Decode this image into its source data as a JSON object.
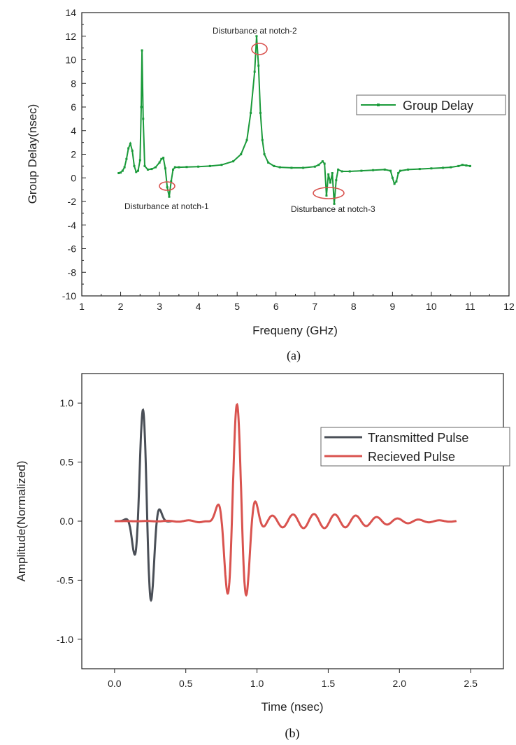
{
  "chart_data": [
    {
      "type": "line",
      "caption": "(a)",
      "xlabel": "Frequeny (GHz)",
      "ylabel": "Group Delay(nsec)",
      "xlim": [
        1,
        12
      ],
      "ylim": [
        -10,
        14
      ],
      "xticks": [
        1,
        2,
        3,
        4,
        5,
        6,
        7,
        8,
        9,
        10,
        11,
        12
      ],
      "yticks": [
        -10,
        -8,
        -6,
        -4,
        -2,
        0,
        2,
        4,
        6,
        8,
        10,
        12,
        14
      ],
      "grid": false,
      "legend_position": "right",
      "series": [
        {
          "name": "Group Delay",
          "color": "#1a9a3a",
          "marker": "square",
          "x": [
            1.95,
            2.0,
            2.05,
            2.1,
            2.15,
            2.2,
            2.25,
            2.3,
            2.35,
            2.4,
            2.45,
            2.5,
            2.53,
            2.55,
            2.58,
            2.62,
            2.7,
            2.8,
            2.9,
            3.0,
            3.05,
            3.1,
            3.15,
            3.2,
            3.25,
            3.3,
            3.35,
            3.4,
            3.5,
            3.7,
            4.0,
            4.3,
            4.6,
            4.9,
            5.1,
            5.25,
            5.35,
            5.45,
            5.5,
            5.55,
            5.6,
            5.65,
            5.7,
            5.8,
            5.95,
            6.1,
            6.4,
            6.7,
            7.0,
            7.1,
            7.2,
            7.25,
            7.3,
            7.35,
            7.4,
            7.45,
            7.5,
            7.55,
            7.6,
            7.7,
            7.9,
            8.2,
            8.5,
            8.8,
            8.95,
            9.0,
            9.05,
            9.1,
            9.15,
            9.2,
            9.4,
            9.7,
            10.0,
            10.3,
            10.5,
            10.7,
            10.8,
            10.9,
            11.0
          ],
          "y": [
            0.4,
            0.45,
            0.6,
            0.9,
            1.6,
            2.5,
            2.9,
            2.3,
            1.0,
            0.5,
            0.6,
            1.5,
            6.0,
            10.8,
            5.0,
            1.0,
            0.7,
            0.75,
            0.9,
            1.3,
            1.6,
            1.7,
            0.8,
            -0.8,
            -1.6,
            -0.3,
            0.7,
            0.9,
            0.9,
            0.92,
            0.95,
            1.0,
            1.1,
            1.4,
            2.0,
            3.2,
            5.5,
            9.0,
            12.0,
            9.5,
            5.5,
            3.2,
            2.0,
            1.3,
            1.0,
            0.9,
            0.85,
            0.85,
            0.95,
            1.1,
            1.4,
            1.2,
            -1.5,
            0.3,
            -0.4,
            0.4,
            -2.2,
            -0.2,
            0.7,
            0.55,
            0.55,
            0.6,
            0.65,
            0.7,
            0.6,
            0.0,
            -0.5,
            -0.3,
            0.4,
            0.6,
            0.7,
            0.75,
            0.8,
            0.85,
            0.9,
            1.0,
            1.1,
            1.05,
            1.0
          ]
        }
      ],
      "annotations": [
        {
          "text": "Disturbance at notch-1",
          "x": 3.25,
          "y": -0.8
        },
        {
          "text": "Disturbance at notch-2",
          "x": 5.6,
          "y": 11.0
        },
        {
          "text": "Disturbance at notch-3",
          "x": 7.45,
          "y": -1.4
        }
      ]
    },
    {
      "type": "line",
      "caption": "(b)",
      "xlabel": "Time (nsec)",
      "ylabel": "Amplitude(Normalized)",
      "xlim": [
        -0.23,
        2.73
      ],
      "ylim": [
        -1.25,
        1.25
      ],
      "xticks": [
        0.0,
        0.5,
        1.0,
        1.5,
        2.0,
        2.5
      ],
      "xtick_labels": [
        "0.0",
        "0.5",
        "1.0",
        "1.5",
        "2.0",
        "2.5"
      ],
      "yticks": [
        -1.0,
        -0.5,
        0.0,
        0.5,
        1.0
      ],
      "ytick_labels": [
        "-1.0",
        "-0.5",
        "0.0",
        "0.5",
        "1.0"
      ],
      "grid": false,
      "legend_position": "top-right",
      "series": [
        {
          "name": "Transmitted Pulse",
          "color": "#4a4f57",
          "formula": "gaussian-monocycle",
          "t0": 0.215,
          "tau": 0.07,
          "freq": 7.5,
          "x_range": [
            0.0,
            0.4
          ]
        },
        {
          "name": "Recieved Pulse",
          "color": "#d9534f",
          "formula": "ringing-pulse",
          "x_range": [
            0.0,
            2.4
          ],
          "components": [
            {
              "t0": 0.86,
              "tau": 0.1,
              "freq": 7.0,
              "amp": 1.0
            },
            {
              "t0": 1.4,
              "tau": 0.6,
              "freq": 6.8,
              "amp": 0.06
            }
          ]
        }
      ]
    }
  ]
}
